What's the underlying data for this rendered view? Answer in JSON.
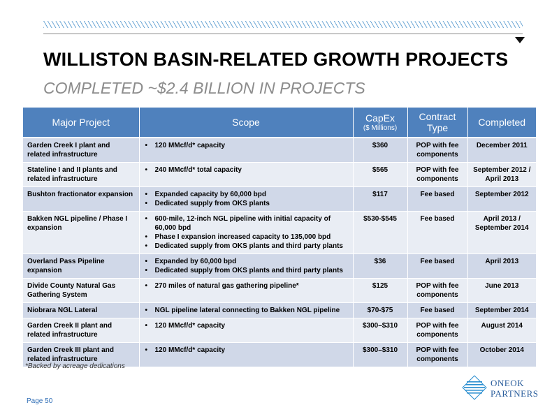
{
  "header": {
    "title": "WILLISTON BASIN-RELATED GROWTH PROJECTS",
    "subtitle": "COMPLETED ~$2.4 BILLION IN PROJECTS"
  },
  "table": {
    "columns": {
      "project": "Major Project",
      "scope": "Scope",
      "capex": "CapEx",
      "capex_unit": "($ Millions)",
      "contract": "Contract Type",
      "completed": "Completed"
    },
    "rows": [
      {
        "project": "Garden Creek I plant and related infrastructure",
        "scope": [
          "120 MMcf/d* capacity"
        ],
        "capex": "$360",
        "contract": "POP with fee components",
        "completed": "December 2011"
      },
      {
        "project": "Stateline I and II plants and related infrastructure",
        "scope": [
          "240 MMcf/d* total capacity"
        ],
        "capex": "$565",
        "contract": "POP with fee components",
        "completed": "September 2012 / April 2013"
      },
      {
        "project": "Bushton fractionator expansion",
        "scope": [
          "Expanded capacity by 60,000 bpd",
          "Dedicated supply from OKS plants"
        ],
        "capex": "$117",
        "contract": "Fee based",
        "completed": "September 2012"
      },
      {
        "project": "Bakken NGL pipeline / Phase I expansion",
        "scope": [
          "600-mile, 12-inch NGL pipeline with initial capacity of 60,000 bpd",
          "Phase I expansion increased capacity to 135,000 bpd",
          "Dedicated supply from OKS plants and third party plants"
        ],
        "capex": "$530-$545",
        "contract": "Fee based",
        "completed": "April 2013 / September 2014"
      },
      {
        "project": "Overland Pass Pipeline expansion",
        "scope": [
          "Expanded by 60,000 bpd",
          "Dedicated supply from OKS plants and third party plants"
        ],
        "capex": "$36",
        "contract": "Fee based",
        "completed": "April 2013"
      },
      {
        "project": "Divide County Natural Gas Gathering System",
        "scope": [
          "270 miles of natural gas gathering pipeline*"
        ],
        "capex": "$125",
        "contract": "POP with fee components",
        "completed": "June 2013"
      },
      {
        "project": "Niobrara NGL Lateral",
        "scope": [
          "NGL pipeline lateral connecting to Bakken NGL pipeline"
        ],
        "capex": "$70-$75",
        "contract": "Fee based",
        "completed": "September 2014"
      },
      {
        "project": "Garden Creek II plant and related infrastructure",
        "scope": [
          "120 MMcf/d* capacity"
        ],
        "capex": "$300–$310",
        "contract": "POP with fee components",
        "completed": "August 2014"
      },
      {
        "project": "Garden Creek III plant and related infrastructure",
        "scope": [
          "120 MMcf/d* capacity"
        ],
        "capex": "$300–$310",
        "contract": "POP with fee components",
        "completed": "October 2014"
      }
    ]
  },
  "footnote": "*Backed by acreage dedications",
  "page_label": "Page 50",
  "logo": {
    "line1": "ONEOK",
    "line2": "PARTNERS"
  },
  "colors": {
    "header_blue": "#4f81bd",
    "row_dark": "#d0d8e8",
    "row_light": "#e9edf4",
    "logo_blue": "#2b5e9c"
  }
}
